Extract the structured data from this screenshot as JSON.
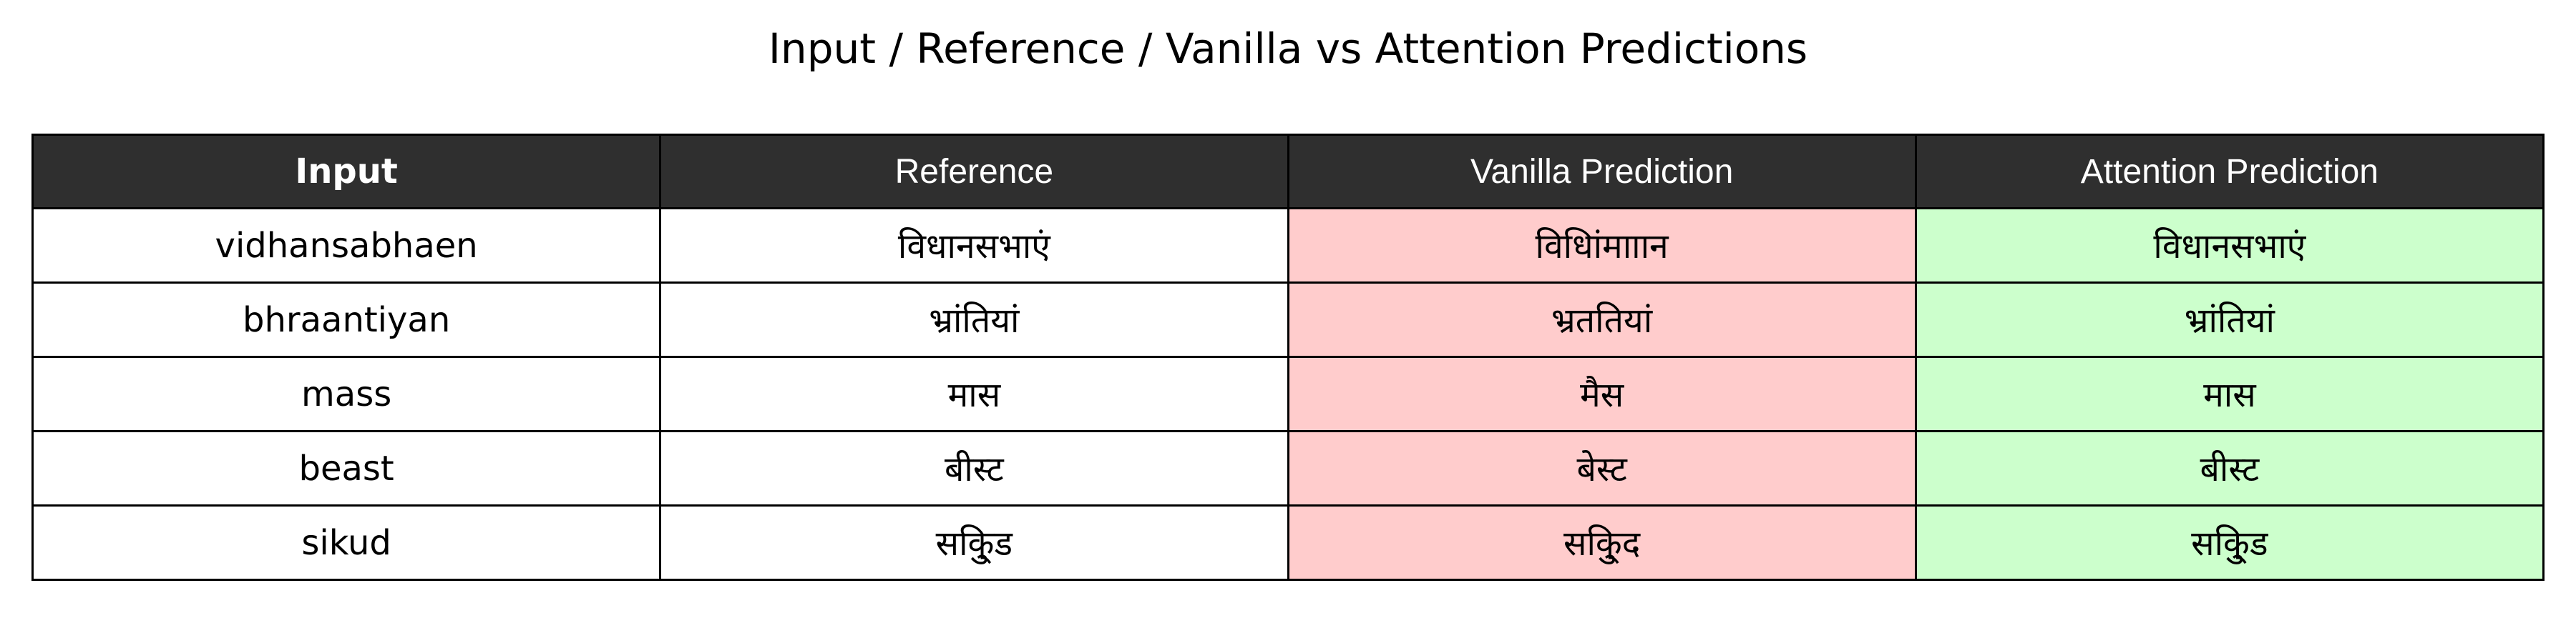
{
  "chart_data": {
    "type": "table",
    "title": "Input / Reference / Vanilla vs Attention Predictions",
    "columns": [
      "Input",
      "Reference",
      "Vanilla  Prediction",
      "Attention  Prediction"
    ],
    "rows": [
      [
        "vidhansabhaen",
        "विधानसभाएं",
        "विधिांमााान",
        "विधानसभाएं"
      ],
      [
        "bhraantiyan",
        "भ्रांतियां",
        "भ्रततियां",
        "भ्रांतियां"
      ],
      [
        "mass",
        "मास",
        "मैस",
        "मास"
      ],
      [
        "beast",
        "बीस्ट",
        "बेस्ट",
        "बीस्ट"
      ],
      [
        "sikud",
        "सकि्ुड",
        "सकि्ुद",
        "सकि्ुड"
      ]
    ],
    "colors": {
      "header_bg": "#2f2f2f",
      "header_text": "#ffffff",
      "vanilla_bg": "#ffcccc",
      "attention_bg": "#ccffcc",
      "default_bg": "#ffffff",
      "border": "#000000"
    }
  }
}
